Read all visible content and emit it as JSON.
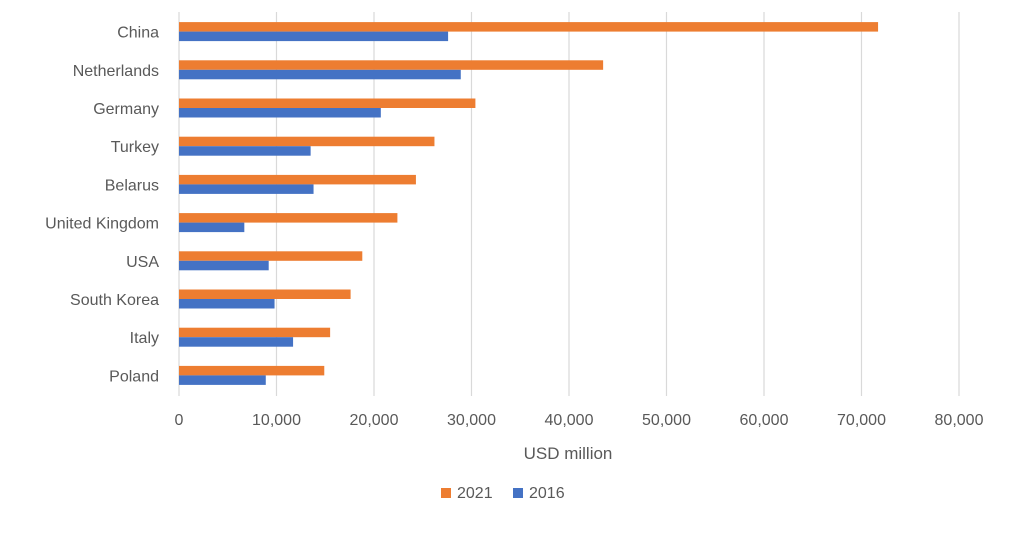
{
  "chart_data": {
    "type": "bar",
    "orientation": "horizontal",
    "categories": [
      "China",
      "Netherlands",
      "Germany",
      "Turkey",
      "Belarus",
      "United Kingdom",
      "USA",
      "South Korea",
      "Italy",
      "Poland"
    ],
    "series": [
      {
        "name": "2021",
        "color": "#ed7d31",
        "values": [
          71700,
          43500,
          30400,
          26200,
          24300,
          22400,
          18800,
          17600,
          15500,
          14900
        ]
      },
      {
        "name": "2016",
        "color": "#4472c4",
        "values": [
          27600,
          28900,
          20700,
          13500,
          13800,
          6700,
          9200,
          9800,
          11700,
          8900
        ]
      }
    ],
    "xlim": [
      0,
      80000
    ],
    "xticks": [
      "0",
      "10,000",
      "20,000",
      "30,000",
      "40,000",
      "50,000",
      "60,000",
      "70,000",
      "80,000"
    ],
    "xlabel": "USD million",
    "grid": true,
    "legend_position": "bottom"
  }
}
